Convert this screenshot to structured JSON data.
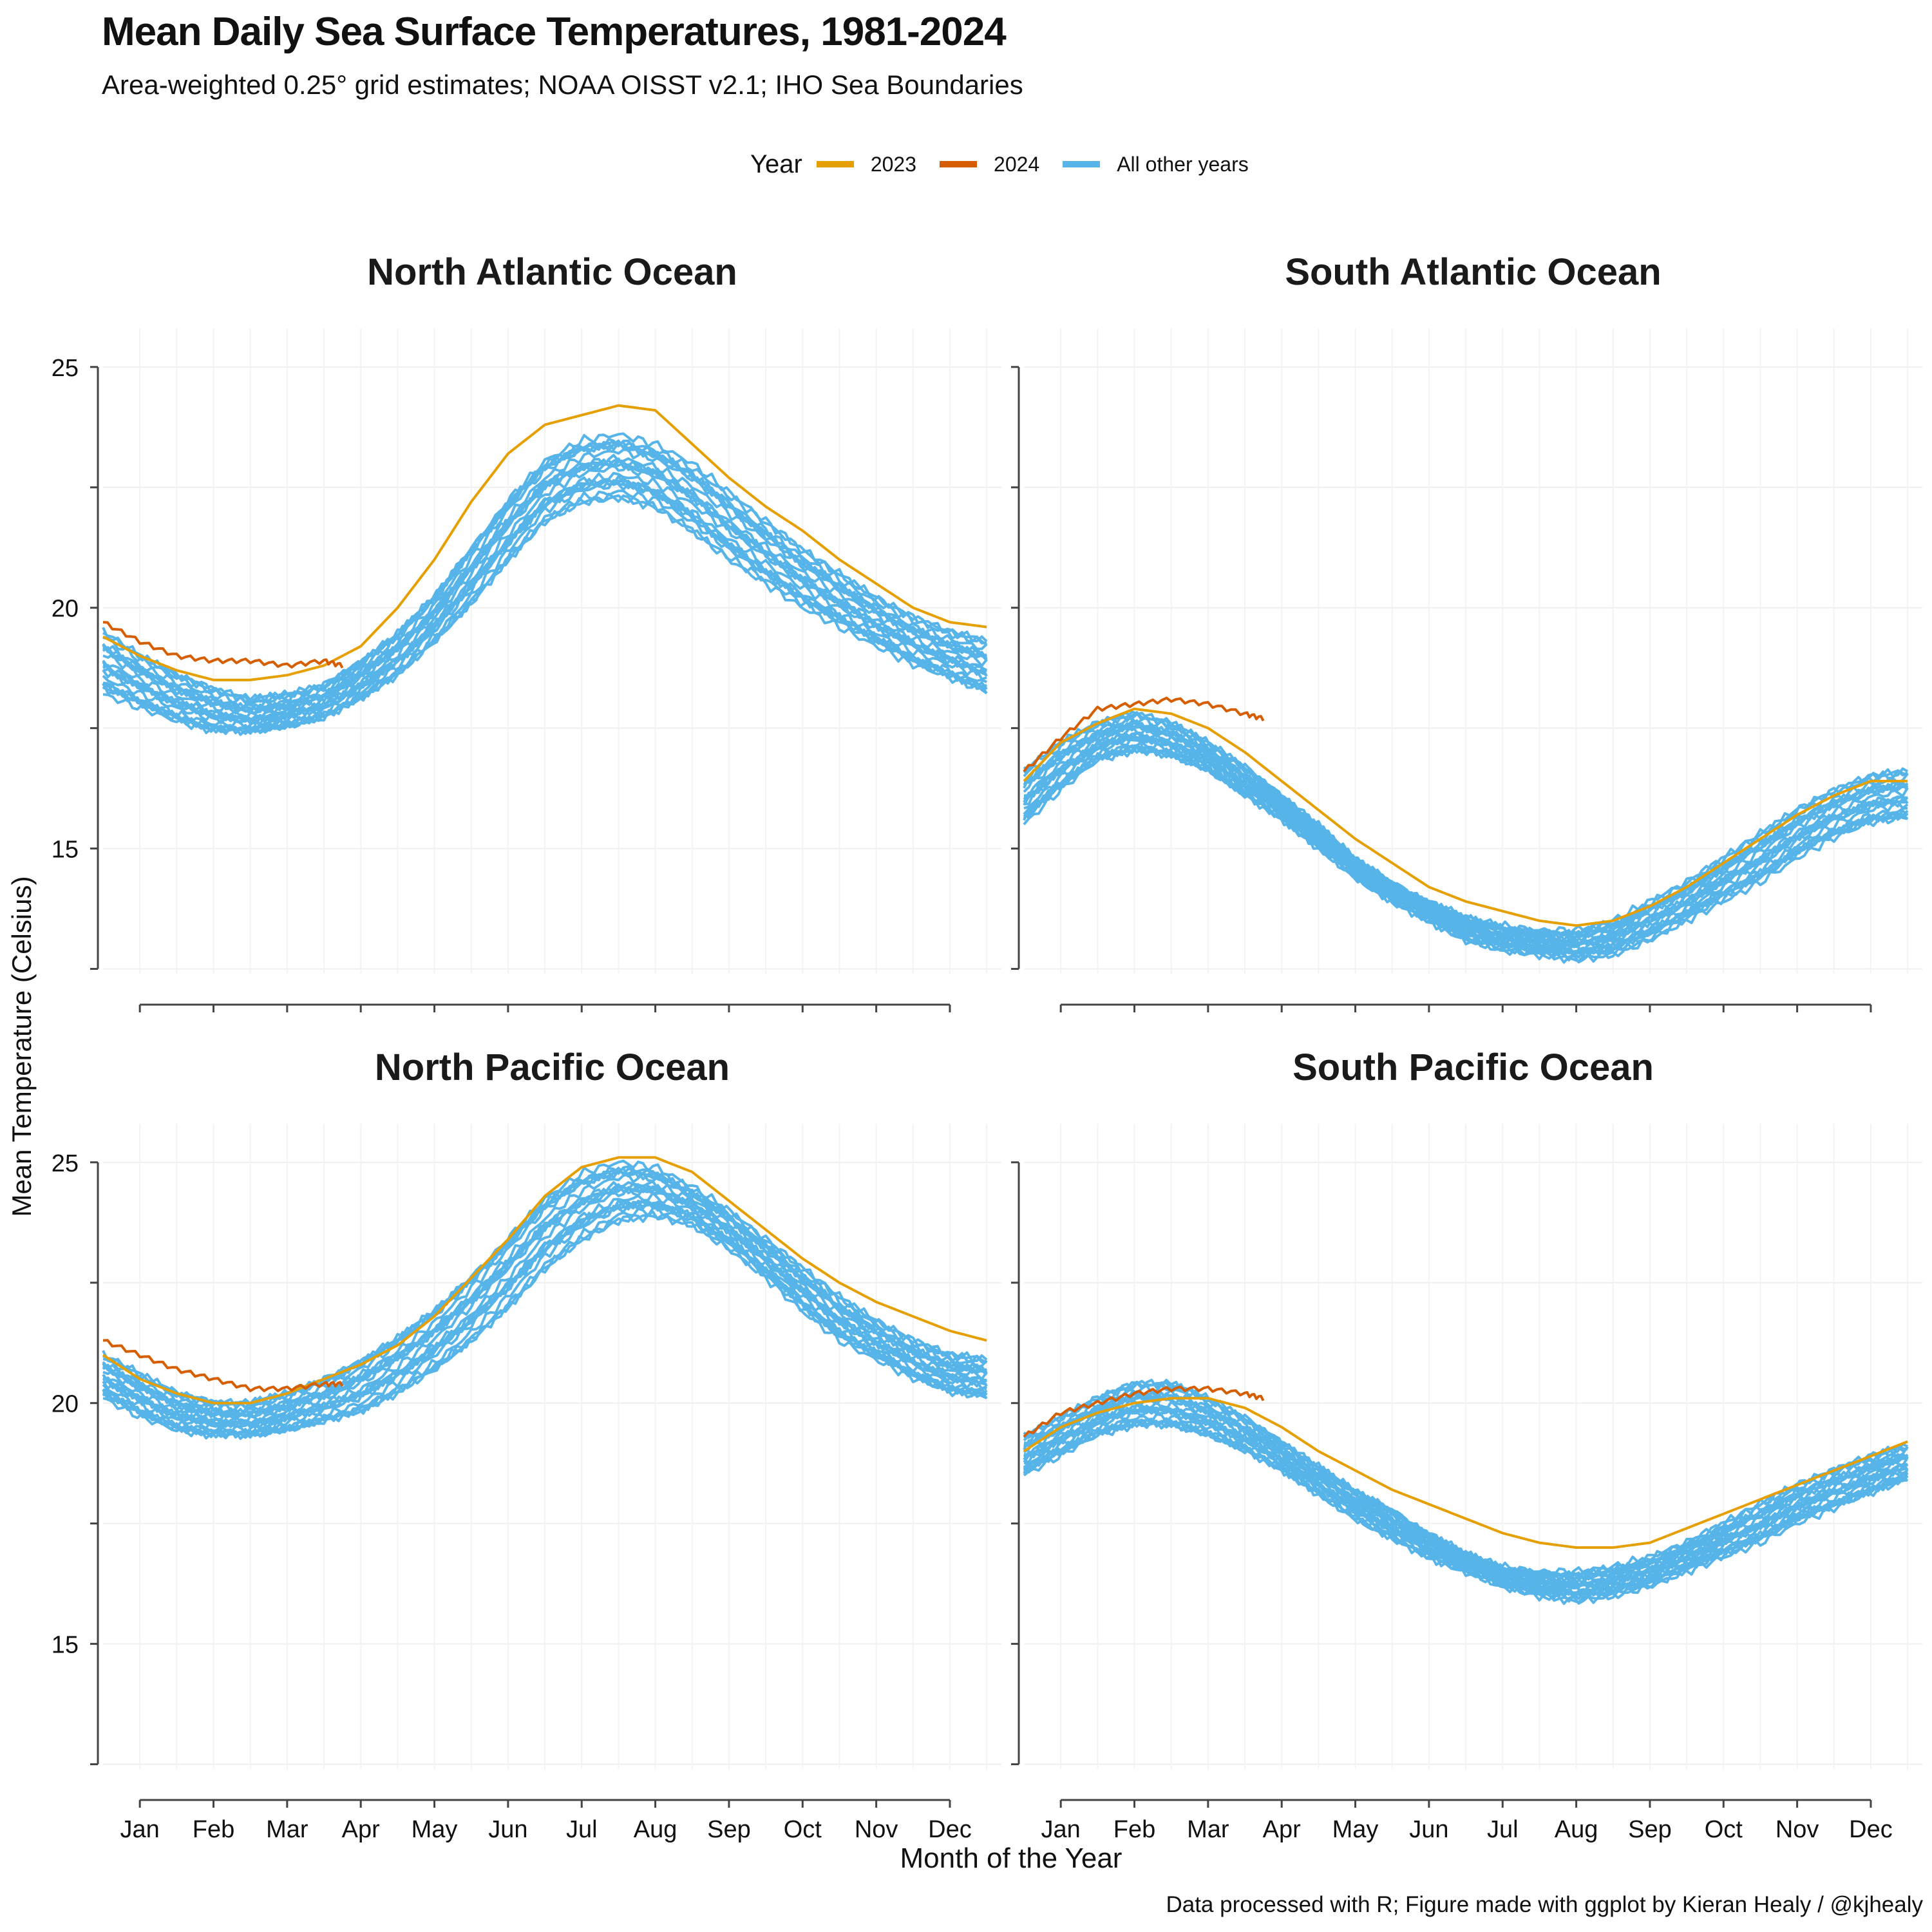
{
  "chart_data": {
    "type": "line",
    "title": "Mean Daily Sea Surface Temperatures, 1981-2024",
    "subtitle": "Area-weighted 0.25° grid estimates; NOAA OISST v2.1; IHO Sea Boundaries",
    "xlabel": "Month of the Year",
    "ylabel": "Mean Temperature (Celsius)",
    "caption": "Data processed with R; Figure made with ggplot by Kieran Healy / @kjhealy",
    "x_ticks": [
      "Jan",
      "Feb",
      "Mar",
      "Apr",
      "May",
      "Jun",
      "Jul",
      "Aug",
      "Sep",
      "Oct",
      "Nov",
      "Dec"
    ],
    "x_range": [
      0.5,
      12.7
    ],
    "ylim": [
      12.4,
      25.8
    ],
    "y_ticks": [
      15,
      20,
      25
    ],
    "grid": true,
    "legend": {
      "title": "Year",
      "placement": "top",
      "entries": [
        {
          "label": "2023",
          "color": "#E69F00"
        },
        {
          "label": "2024",
          "color": "#D55E00"
        },
        {
          "label": "All other years",
          "color": "#56B4E9"
        }
      ]
    },
    "panels": [
      {
        "name": "North Atlantic Ocean",
        "x": [
          0.5,
          1.0,
          1.5,
          2.0,
          2.5,
          3.0,
          3.5,
          4.0,
          4.5,
          5.0,
          5.5,
          6.0,
          6.5,
          7.0,
          7.5,
          8.0,
          8.5,
          9.0,
          9.5,
          10.0,
          10.5,
          11.0,
          11.5,
          12.0,
          12.5
        ],
        "band_low": [
          18.2,
          17.9,
          17.6,
          17.4,
          17.4,
          17.5,
          17.7,
          18.1,
          18.6,
          19.3,
          20.1,
          21.0,
          21.8,
          22.2,
          22.3,
          22.1,
          21.6,
          21.0,
          20.5,
          20.0,
          19.6,
          19.2,
          18.8,
          18.5,
          18.2
        ],
        "band_high": [
          19.5,
          19.0,
          18.6,
          18.3,
          18.1,
          18.2,
          18.4,
          18.9,
          19.5,
          20.3,
          21.3,
          22.3,
          23.1,
          23.5,
          23.6,
          23.4,
          23.0,
          22.4,
          21.8,
          21.2,
          20.7,
          20.2,
          19.8,
          19.5,
          19.3
        ],
        "series": [
          {
            "name": "2023",
            "x": [
              0.5,
              1.0,
              1.5,
              2.0,
              2.5,
              3.0,
              3.5,
              4.0,
              4.5,
              5.0,
              5.5,
              6.0,
              6.5,
              7.0,
              7.5,
              8.0,
              8.5,
              9.0,
              9.5,
              10.0,
              10.5,
              11.0,
              11.5,
              12.0,
              12.5
            ],
            "values": [
              19.4,
              19.0,
              18.7,
              18.5,
              18.5,
              18.6,
              18.8,
              19.2,
              20.0,
              21.0,
              22.2,
              23.2,
              23.8,
              24.0,
              24.2,
              24.1,
              23.4,
              22.7,
              22.1,
              21.6,
              21.0,
              20.5,
              20.0,
              19.7,
              19.6
            ]
          },
          {
            "name": "2024",
            "x": [
              0.5,
              1.0,
              1.5,
              2.0,
              2.5,
              3.0,
              3.5,
              3.75
            ],
            "values": [
              19.7,
              19.3,
              19.0,
              18.9,
              18.9,
              18.8,
              18.9,
              18.8
            ]
          }
        ]
      },
      {
        "name": "South Atlantic Ocean",
        "x": [
          0.5,
          1.0,
          1.5,
          2.0,
          2.5,
          3.0,
          3.5,
          4.0,
          4.5,
          5.0,
          5.5,
          6.0,
          6.5,
          7.0,
          7.5,
          8.0,
          8.5,
          9.0,
          9.5,
          10.0,
          10.5,
          11.0,
          11.5,
          12.0,
          12.5
        ],
        "band_low": [
          15.5,
          16.2,
          16.8,
          17.0,
          16.9,
          16.6,
          16.1,
          15.6,
          15.0,
          14.4,
          13.9,
          13.5,
          13.1,
          12.9,
          12.8,
          12.7,
          12.8,
          13.1,
          13.5,
          13.9,
          14.3,
          14.8,
          15.2,
          15.5,
          15.6
        ],
        "band_high": [
          16.6,
          17.2,
          17.6,
          17.8,
          17.6,
          17.2,
          16.7,
          16.1,
          15.5,
          14.8,
          14.3,
          13.9,
          13.6,
          13.4,
          13.3,
          13.3,
          13.5,
          13.9,
          14.3,
          14.8,
          15.3,
          15.8,
          16.2,
          16.5,
          16.6
        ],
        "series": [
          {
            "name": "2023",
            "x": [
              0.5,
              1.0,
              1.5,
              2.0,
              2.5,
              3.0,
              3.5,
              4.0,
              4.5,
              5.0,
              5.5,
              6.0,
              6.5,
              7.0,
              7.5,
              8.0,
              8.5,
              9.0,
              9.5,
              10.0,
              10.5,
              11.0,
              11.5,
              12.0,
              12.5
            ],
            "values": [
              16.4,
              17.2,
              17.6,
              17.9,
              17.8,
              17.5,
              17.0,
              16.4,
              15.8,
              15.2,
              14.7,
              14.2,
              13.9,
              13.7,
              13.5,
              13.4,
              13.5,
              13.8,
              14.2,
              14.7,
              15.2,
              15.7,
              16.1,
              16.4,
              16.4
            ]
          },
          {
            "name": "2024",
            "x": [
              0.5,
              1.0,
              1.5,
              2.0,
              2.5,
              3.0,
              3.5,
              3.75
            ],
            "values": [
              16.6,
              17.3,
              17.9,
              18.0,
              18.1,
              18.0,
              17.8,
              17.7
            ]
          }
        ]
      },
      {
        "name": "North Pacific Ocean",
        "x": [
          0.5,
          1.0,
          1.5,
          2.0,
          2.5,
          3.0,
          3.5,
          4.0,
          4.5,
          5.0,
          5.5,
          6.0,
          6.5,
          7.0,
          7.5,
          8.0,
          8.5,
          9.0,
          9.5,
          10.0,
          10.5,
          11.0,
          11.5,
          12.0,
          12.5
        ],
        "band_low": [
          20.1,
          19.7,
          19.4,
          19.3,
          19.3,
          19.4,
          19.6,
          19.8,
          20.2,
          20.7,
          21.3,
          22.0,
          22.8,
          23.4,
          23.8,
          23.9,
          23.7,
          23.2,
          22.6,
          21.9,
          21.3,
          20.9,
          20.5,
          20.2,
          20.1
        ],
        "band_high": [
          21.0,
          20.6,
          20.2,
          20.0,
          20.0,
          20.2,
          20.5,
          20.9,
          21.4,
          22.0,
          22.7,
          23.5,
          24.3,
          24.8,
          25.0,
          24.9,
          24.5,
          24.0,
          23.4,
          22.8,
          22.2,
          21.7,
          21.3,
          21.0,
          20.9
        ],
        "series": [
          {
            "name": "2023",
            "x": [
              0.5,
              1.0,
              1.5,
              2.0,
              2.5,
              3.0,
              3.5,
              4.0,
              4.5,
              5.0,
              5.5,
              6.0,
              6.5,
              7.0,
              7.5,
              8.0,
              8.5,
              9.0,
              9.5,
              10.0,
              10.5,
              11.0,
              11.5,
              12.0,
              12.5
            ],
            "values": [
              21.0,
              20.5,
              20.2,
              20.0,
              20.0,
              20.2,
              20.5,
              20.8,
              21.2,
              21.8,
              22.6,
              23.4,
              24.3,
              24.9,
              25.1,
              25.1,
              24.8,
              24.2,
              23.6,
              23.0,
              22.5,
              22.1,
              21.8,
              21.5,
              21.3
            ]
          },
          {
            "name": "2024",
            "x": [
              0.5,
              1.0,
              1.5,
              2.0,
              2.5,
              3.0,
              3.5,
              3.75
            ],
            "values": [
              21.3,
              21.0,
              20.7,
              20.5,
              20.3,
              20.3,
              20.4,
              20.4
            ]
          }
        ]
      },
      {
        "name": "South Pacific Ocean",
        "x": [
          0.5,
          1.0,
          1.5,
          2.0,
          2.5,
          3.0,
          3.5,
          4.0,
          4.5,
          5.0,
          5.5,
          6.0,
          6.5,
          7.0,
          7.5,
          8.0,
          8.5,
          9.0,
          9.5,
          10.0,
          10.5,
          11.0,
          11.5,
          12.0,
          12.5
        ],
        "band_low": [
          18.5,
          18.9,
          19.3,
          19.5,
          19.5,
          19.3,
          19.0,
          18.6,
          18.1,
          17.6,
          17.2,
          16.8,
          16.5,
          16.2,
          16.0,
          15.9,
          16.0,
          16.2,
          16.5,
          16.8,
          17.1,
          17.5,
          17.8,
          18.1,
          18.4
        ],
        "band_high": [
          19.3,
          19.7,
          20.1,
          20.4,
          20.4,
          20.1,
          19.7,
          19.2,
          18.7,
          18.2,
          17.8,
          17.3,
          16.9,
          16.6,
          16.5,
          16.5,
          16.6,
          16.8,
          17.1,
          17.5,
          17.9,
          18.3,
          18.6,
          18.9,
          19.1
        ],
        "series": [
          {
            "name": "2023",
            "x": [
              0.5,
              1.0,
              1.5,
              2.0,
              2.5,
              3.0,
              3.5,
              4.0,
              4.5,
              5.0,
              5.5,
              6.0,
              6.5,
              7.0,
              7.5,
              8.0,
              8.5,
              9.0,
              9.5,
              10.0,
              10.5,
              11.0,
              11.5,
              12.0,
              12.5
            ],
            "values": [
              19.0,
              19.5,
              19.8,
              20.0,
              20.1,
              20.1,
              19.9,
              19.5,
              19.0,
              18.6,
              18.2,
              17.9,
              17.6,
              17.3,
              17.1,
              17.0,
              17.0,
              17.1,
              17.4,
              17.7,
              18.0,
              18.3,
              18.6,
              18.9,
              19.2
            ]
          },
          {
            "name": "2024",
            "x": [
              0.5,
              1.0,
              1.5,
              2.0,
              2.5,
              3.0,
              3.5,
              3.75
            ],
            "values": [
              19.3,
              19.8,
              20.0,
              20.2,
              20.3,
              20.3,
              20.2,
              20.1
            ]
          }
        ]
      }
    ]
  }
}
